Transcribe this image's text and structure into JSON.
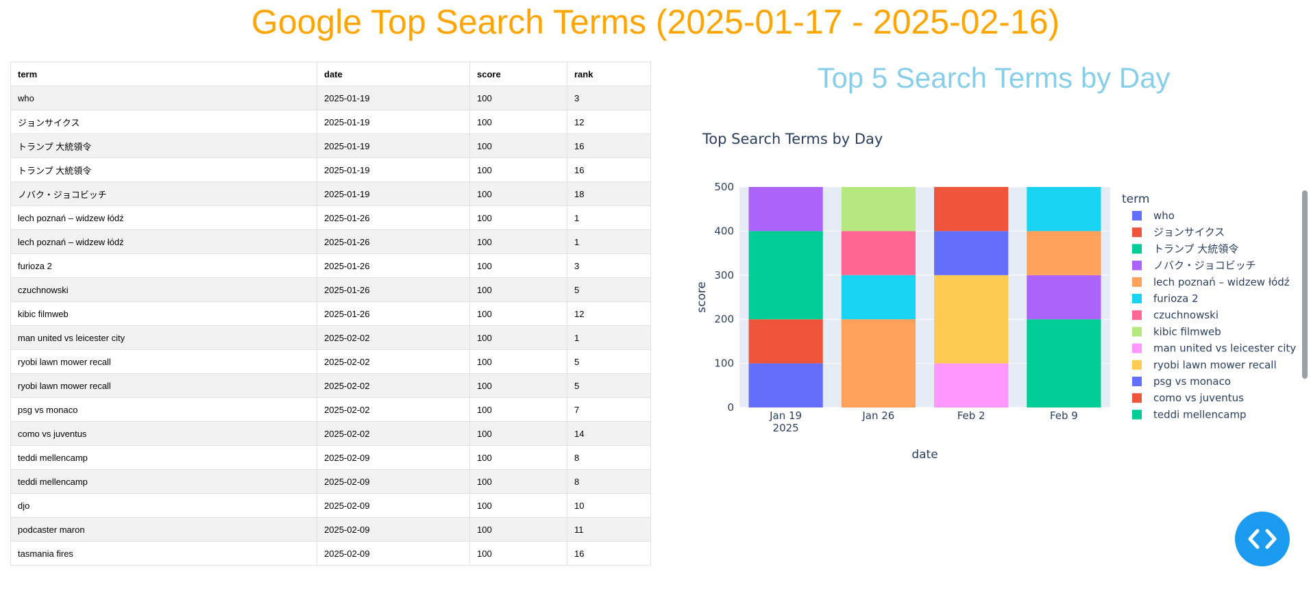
{
  "page": {
    "title": "Google Top Search Terms (2025-01-17 - 2025-02-16)"
  },
  "table": {
    "columns": [
      "term",
      "date",
      "score",
      "rank"
    ],
    "rows": [
      [
        "who",
        "2025-01-19",
        "100",
        "3"
      ],
      [
        "ジョンサイクス",
        "2025-01-19",
        "100",
        "12"
      ],
      [
        "トランプ 大統領令",
        "2025-01-19",
        "100",
        "16"
      ],
      [
        "トランプ 大統領令",
        "2025-01-19",
        "100",
        "16"
      ],
      [
        "ノバク・ジョコビッチ",
        "2025-01-19",
        "100",
        "18"
      ],
      [
        "lech poznań – widzew łódź",
        "2025-01-26",
        "100",
        "1"
      ],
      [
        "lech poznań – widzew łódź",
        "2025-01-26",
        "100",
        "1"
      ],
      [
        "furioza 2",
        "2025-01-26",
        "100",
        "3"
      ],
      [
        "czuchnowski",
        "2025-01-26",
        "100",
        "5"
      ],
      [
        "kibic filmweb",
        "2025-01-26",
        "100",
        "12"
      ],
      [
        "man united vs leicester city",
        "2025-02-02",
        "100",
        "1"
      ],
      [
        "ryobi lawn mower recall",
        "2025-02-02",
        "100",
        "5"
      ],
      [
        "ryobi lawn mower recall",
        "2025-02-02",
        "100",
        "5"
      ],
      [
        "psg vs monaco",
        "2025-02-02",
        "100",
        "7"
      ],
      [
        "como vs juventus",
        "2025-02-02",
        "100",
        "14"
      ],
      [
        "teddi mellencamp",
        "2025-02-09",
        "100",
        "8"
      ],
      [
        "teddi mellencamp",
        "2025-02-09",
        "100",
        "8"
      ],
      [
        "djo",
        "2025-02-09",
        "100",
        "10"
      ],
      [
        "podcaster maron",
        "2025-02-09",
        "100",
        "11"
      ],
      [
        "tasmania fires",
        "2025-02-09",
        "100",
        "16"
      ]
    ]
  },
  "chart_panel": {
    "heading": "Top 5 Search Terms by Day"
  },
  "chart_data": {
    "type": "bar",
    "stacked": true,
    "title": "Top Search Terms by Day",
    "xlabel": "date",
    "ylabel": "score",
    "ylim": [
      0,
      500
    ],
    "yticks": [
      "0",
      "100",
      "200",
      "300",
      "400",
      "500"
    ],
    "categories": [
      "Jan 19",
      "Jan 26",
      "Feb 2",
      "Feb 9"
    ],
    "year_label": "2025",
    "grid": true,
    "legend": {
      "title": "term",
      "position": "right"
    },
    "series": [
      {
        "name": "who",
        "color": "#636EFA",
        "values": [
          100,
          0,
          0,
          0
        ]
      },
      {
        "name": "ジョンサイクス",
        "color": "#EF553B",
        "values": [
          100,
          0,
          0,
          0
        ]
      },
      {
        "name": "トランプ 大統領令",
        "color": "#00CC96",
        "values": [
          200,
          0,
          0,
          0
        ]
      },
      {
        "name": "ノバク・ジョコビッチ",
        "color": "#AB63FA",
        "values": [
          100,
          0,
          0,
          0
        ]
      },
      {
        "name": "lech poznań – widzew łódź",
        "color": "#FFA15A",
        "values": [
          0,
          200,
          0,
          0
        ]
      },
      {
        "name": "furioza 2",
        "color": "#19D3F3",
        "values": [
          0,
          100,
          0,
          0
        ]
      },
      {
        "name": "czuchnowski",
        "color": "#FF6692",
        "values": [
          0,
          100,
          0,
          0
        ]
      },
      {
        "name": "kibic filmweb",
        "color": "#B6E880",
        "values": [
          0,
          100,
          0,
          0
        ]
      },
      {
        "name": "man united vs leicester city",
        "color": "#FF97FF",
        "values": [
          0,
          0,
          100,
          0
        ]
      },
      {
        "name": "ryobi lawn mower recall",
        "color": "#FECB52",
        "values": [
          0,
          0,
          200,
          0
        ]
      },
      {
        "name": "psg vs monaco",
        "color": "#636EFA",
        "values": [
          0,
          0,
          100,
          0
        ]
      },
      {
        "name": "como vs juventus",
        "color": "#EF553B",
        "values": [
          0,
          0,
          100,
          0
        ]
      },
      {
        "name": "teddi mellencamp",
        "color": "#00CC96",
        "values": [
          0,
          0,
          0,
          200
        ]
      },
      {
        "name": "djo",
        "color": "#AB63FA",
        "values": [
          0,
          0,
          0,
          100
        ]
      },
      {
        "name": "podcaster maron",
        "color": "#FFA15A",
        "values": [
          0,
          0,
          0,
          100
        ]
      },
      {
        "name": "tasmania fires",
        "color": "#19D3F3",
        "values": [
          0,
          0,
          0,
          100
        ]
      }
    ]
  },
  "icons": {
    "code_button": "code-icon",
    "code_button_color": "#1a9bf0"
  }
}
